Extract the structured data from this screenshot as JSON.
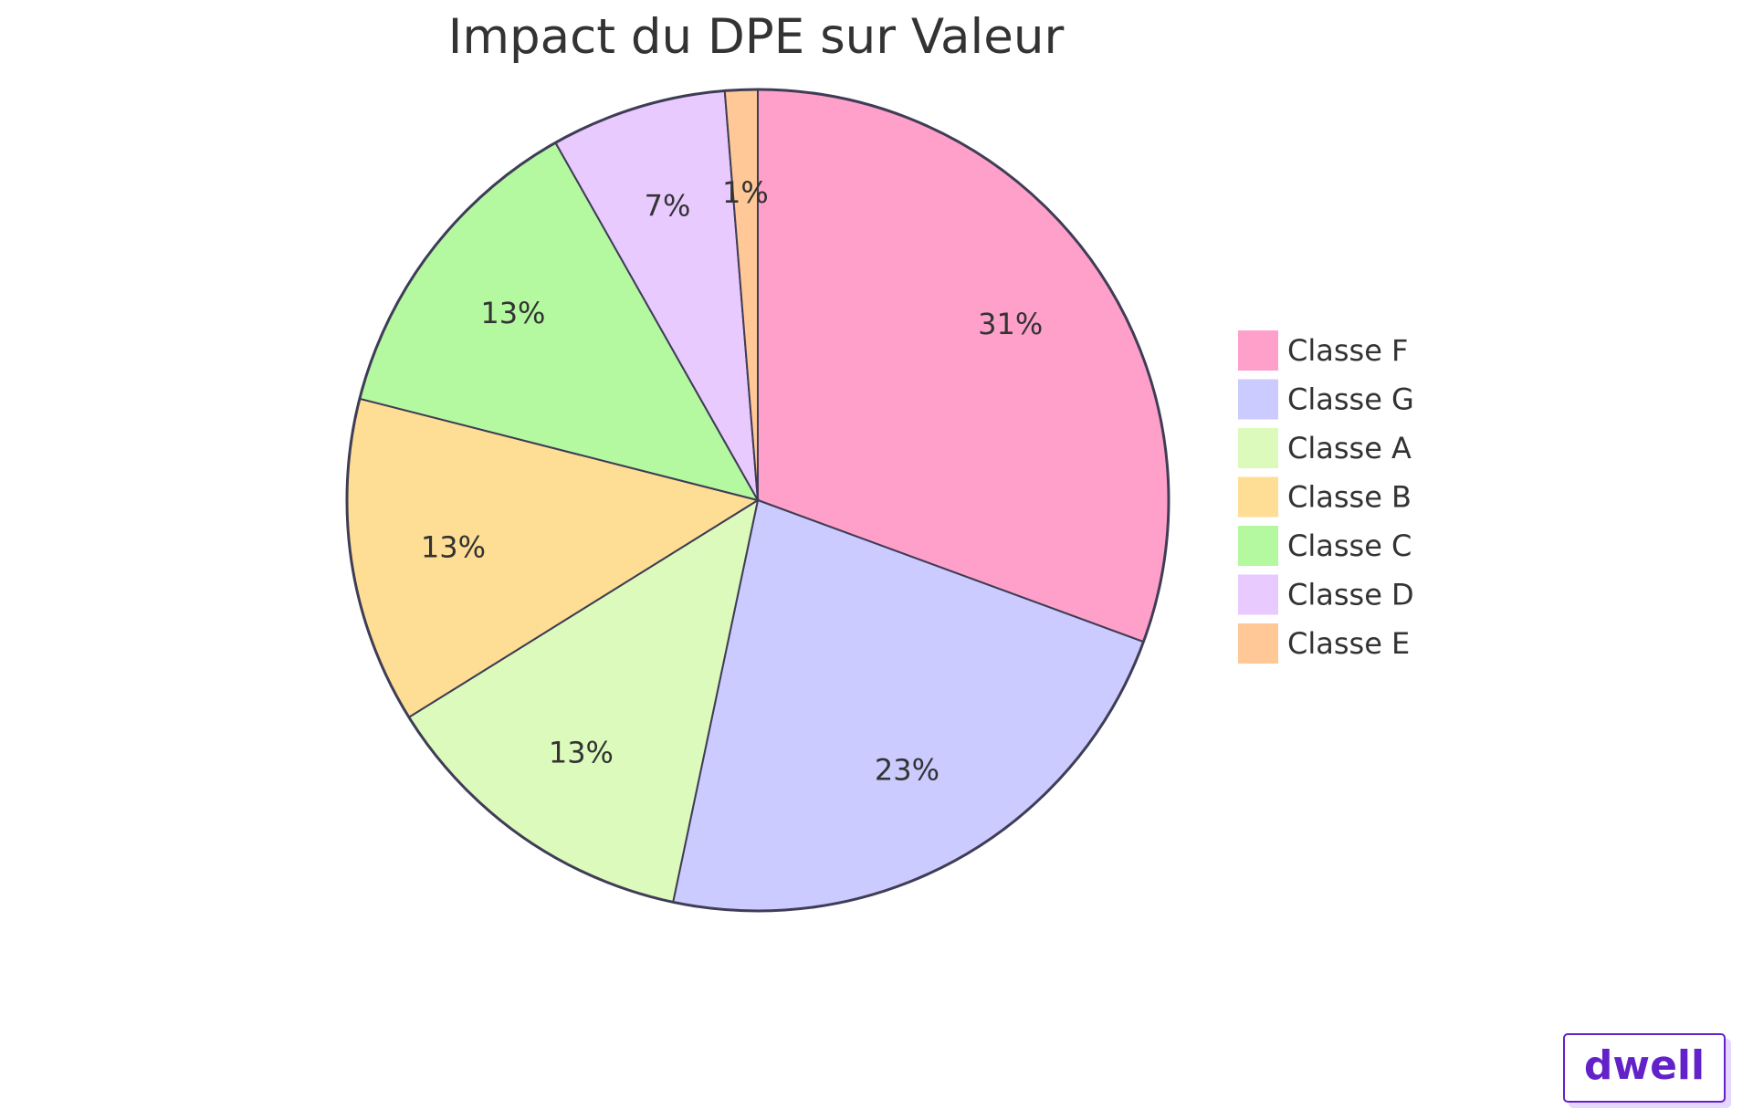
{
  "chart_data": {
    "type": "pie",
    "title": "Impact du DPE sur Valeur",
    "slices": [
      {
        "label": "Classe F",
        "value": 31,
        "display": "31%",
        "color": "#ffa0ca"
      },
      {
        "label": "Classe G",
        "value": 23,
        "display": "23%",
        "color": "#cbcbff"
      },
      {
        "label": "Classe A",
        "value": 13,
        "display": "13%",
        "color": "#dcfabb"
      },
      {
        "label": "Classe B",
        "value": 13,
        "display": "13%",
        "color": "#fede94"
      },
      {
        "label": "Classe C",
        "value": 13,
        "display": "13%",
        "color": "#b4f9a0"
      },
      {
        "label": "Classe D",
        "value": 7,
        "display": "7%",
        "color": "#e8caff"
      },
      {
        "label": "Classe E",
        "value": 1.3,
        "display": "1%",
        "color": "#ffc896"
      }
    ],
    "legend": "right",
    "stroke_color": "#3f3d56"
  },
  "brand": {
    "logo_text": "dwell",
    "color": "#6322c9",
    "shadow_color": "#e6d7ff"
  }
}
